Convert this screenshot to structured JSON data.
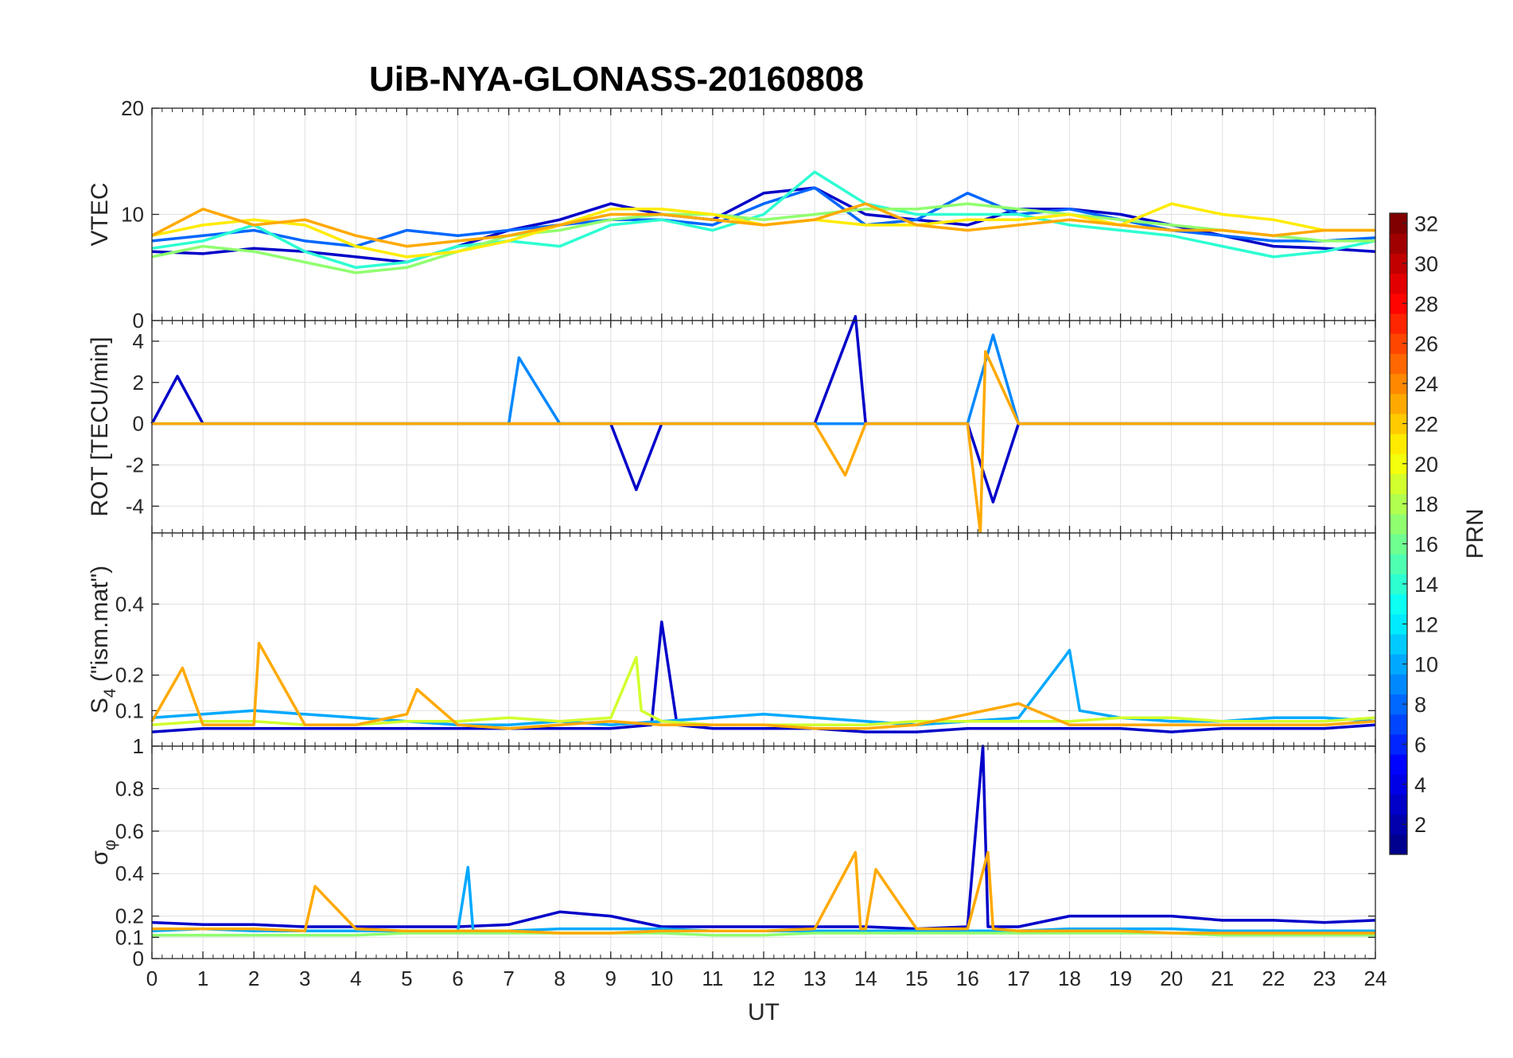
{
  "title": "UiB-NYA-GLONASS-20160808",
  "colormap": [
    "#00008f",
    "#0000ff",
    "#0080ff",
    "#00ffff",
    "#80ff80",
    "#ffff00",
    "#ff8000",
    "#ff0000",
    "#800000"
  ],
  "chart_data": [
    {
      "type": "line",
      "panel": "VTEC",
      "ylabel": "VTEC",
      "ylim": [
        0,
        20
      ],
      "yticks": [
        "0",
        "10",
        "20"
      ],
      "xlim": [
        0,
        24
      ],
      "grid": true,
      "series": [
        {
          "prn": 3,
          "x": [
            0,
            1,
            2,
            3,
            4,
            5,
            6,
            7,
            8,
            9,
            10,
            11,
            12,
            13,
            14,
            15,
            16,
            17,
            18,
            19,
            20,
            21,
            22,
            23,
            24
          ],
          "values": [
            6.5,
            6.3,
            6.8,
            6.5,
            6,
            5.5,
            7,
            8.5,
            9.5,
            11,
            10,
            9.5,
            12,
            12.5,
            10,
            9.5,
            9,
            10.5,
            10.5,
            10,
            9,
            8,
            7,
            6.8,
            6.5
          ]
        },
        {
          "prn": 8,
          "x": [
            0,
            1,
            2,
            3,
            4,
            5,
            6,
            7,
            8,
            9,
            10,
            11,
            12,
            13,
            14,
            15,
            16,
            17,
            18,
            19,
            20,
            21,
            22,
            23,
            24
          ],
          "values": [
            7.5,
            8,
            8.5,
            7.5,
            7,
            8.5,
            8,
            8.5,
            9,
            9.5,
            9.5,
            9,
            11,
            12.5,
            9,
            9.5,
            12,
            10,
            10.5,
            9.5,
            8.5,
            8,
            7.5,
            7.5,
            7.8
          ]
        },
        {
          "prn": 14,
          "x": [
            0,
            1,
            2,
            3,
            4,
            5,
            6,
            7,
            8,
            9,
            10,
            11,
            12,
            13,
            14,
            15,
            16,
            17,
            18,
            19,
            20,
            21,
            22,
            23,
            24
          ],
          "values": [
            6.8,
            7.5,
            9,
            6.5,
            5,
            5.5,
            7,
            7.5,
            7,
            9,
            9.5,
            8.5,
            10,
            14,
            11,
            10,
            10,
            10,
            9,
            8.5,
            8,
            7,
            6,
            6.5,
            7.5
          ]
        },
        {
          "prn": 17,
          "x": [
            0,
            1,
            2,
            3,
            4,
            5,
            6,
            7,
            8,
            9,
            10,
            11,
            12,
            13,
            14,
            15,
            16,
            17,
            18,
            19,
            20,
            21,
            22,
            23,
            24
          ],
          "values": [
            6,
            7,
            6.5,
            5.5,
            4.5,
            5,
            6.5,
            8,
            8.5,
            9.5,
            10,
            10,
            9.5,
            10,
            10.5,
            10.5,
            11,
            10.5,
            10,
            9.5,
            9,
            8.5,
            8,
            7.5,
            7.5
          ]
        },
        {
          "prn": 21,
          "x": [
            0,
            1,
            2,
            3,
            4,
            5,
            6,
            7,
            8,
            9,
            10,
            11,
            12,
            13,
            14,
            15,
            16,
            17,
            18,
            19,
            20,
            21,
            22,
            23,
            24
          ],
          "values": [
            8,
            9,
            9.5,
            9,
            7,
            6,
            6.5,
            7.5,
            9,
            10.5,
            10.5,
            10,
            9,
            9.5,
            9,
            9,
            9.5,
            9.5,
            10,
            9,
            11,
            10,
            9.5,
            8.5,
            8.5
          ]
        },
        {
          "prn": 23,
          "x": [
            0,
            1,
            2,
            3,
            4,
            5,
            6,
            7,
            8,
            9,
            10,
            11,
            12,
            13,
            14,
            15,
            16,
            17,
            18,
            19,
            20,
            21,
            22,
            23,
            24
          ],
          "values": [
            8,
            10.5,
            9,
            9.5,
            8,
            7,
            7.5,
            8,
            9,
            10,
            10,
            9.5,
            9,
            9.5,
            11,
            9,
            8.5,
            9,
            9.5,
            9,
            8.5,
            8.5,
            8,
            8.5,
            8.5
          ]
        }
      ]
    },
    {
      "type": "line",
      "panel": "ROT",
      "ylabel": "ROT [TECU/min]",
      "ylim": [
        -5.3,
        5
      ],
      "yticks": [
        "-4",
        "-2",
        "0",
        "2",
        "4"
      ],
      "xlim": [
        0,
        24
      ],
      "grid": true,
      "series": [
        {
          "prn": 3,
          "x": [
            0,
            0.5,
            1,
            2,
            3,
            4,
            5,
            6,
            7,
            8,
            9,
            9.5,
            10,
            11,
            12,
            13,
            13.8,
            14,
            15,
            16,
            16.5,
            17,
            18,
            19,
            20,
            21,
            22,
            23,
            24
          ],
          "values": [
            0,
            2.3,
            0,
            0,
            0,
            0,
            0,
            0,
            0,
            0,
            0,
            -3.2,
            0,
            0,
            0,
            0,
            5.2,
            0,
            0,
            0,
            -3.8,
            0,
            0,
            0,
            0,
            0,
            0,
            0,
            0
          ]
        },
        {
          "prn": 9,
          "x": [
            0,
            1,
            2,
            3,
            4,
            5,
            6,
            7,
            7.2,
            8,
            9,
            10,
            11,
            12,
            13,
            14,
            15,
            16,
            16.5,
            17,
            18,
            19,
            20,
            21,
            22,
            23,
            24
          ],
          "values": [
            0,
            0,
            0,
            0,
            0,
            0,
            0,
            0,
            3.2,
            0,
            0,
            0,
            0,
            0,
            0,
            0,
            0,
            0,
            4.3,
            0,
            0,
            0,
            0,
            0,
            0,
            0,
            0
          ]
        },
        {
          "prn": 23,
          "x": [
            0,
            1,
            2,
            3,
            4,
            5,
            6,
            7,
            8,
            9,
            10,
            11,
            12,
            13,
            13.6,
            14,
            15,
            16,
            16.25,
            16.35,
            17,
            18,
            19,
            20,
            21,
            22,
            23,
            24
          ],
          "values": [
            0,
            0,
            0,
            0,
            0,
            0,
            0,
            0,
            0,
            0,
            0,
            0,
            0,
            0,
            -2.5,
            0,
            0,
            0,
            -5.3,
            3.5,
            0,
            0,
            0,
            0,
            0,
            0,
            0,
            0
          ]
        }
      ]
    },
    {
      "type": "line",
      "panel": "S4",
      "ylabel": "S4 (\"ism.mat\")",
      "ylabel_main": "S",
      "ylabel_sub": "4",
      "ylabel_rest": " (\"ism.mat\")",
      "ylim": [
        0,
        0.6
      ],
      "yticks": [
        "0.1",
        "0.2",
        "0.4"
      ],
      "xlim": [
        0,
        24
      ],
      "grid": true,
      "series": [
        {
          "prn": 3,
          "x": [
            0,
            1,
            2,
            3,
            4,
            5,
            6,
            7,
            8,
            9,
            9.8,
            10,
            10.3,
            11,
            12,
            13,
            14,
            15,
            16,
            17,
            18,
            19,
            20,
            21,
            22,
            23,
            24
          ],
          "values": [
            0.04,
            0.05,
            0.05,
            0.05,
            0.05,
            0.05,
            0.05,
            0.05,
            0.05,
            0.05,
            0.06,
            0.35,
            0.06,
            0.05,
            0.05,
            0.05,
            0.04,
            0.04,
            0.05,
            0.05,
            0.05,
            0.05,
            0.04,
            0.05,
            0.05,
            0.05,
            0.06
          ]
        },
        {
          "prn": 10,
          "x": [
            0,
            1,
            2,
            3,
            4,
            5,
            6,
            7,
            8,
            9,
            10,
            11,
            12,
            13,
            14,
            15,
            16,
            17,
            17.9,
            18,
            18.2,
            19,
            20,
            21,
            22,
            23,
            24
          ],
          "values": [
            0.08,
            0.09,
            0.1,
            0.09,
            0.08,
            0.07,
            0.06,
            0.06,
            0.07,
            0.06,
            0.07,
            0.08,
            0.09,
            0.08,
            0.07,
            0.06,
            0.07,
            0.08,
            0.25,
            0.27,
            0.1,
            0.08,
            0.07,
            0.07,
            0.08,
            0.08,
            0.07
          ]
        },
        {
          "prn": 19,
          "x": [
            0,
            1,
            2,
            3,
            4,
            5,
            6,
            7,
            8,
            9,
            9.5,
            9.6,
            10,
            11,
            12,
            13,
            14,
            15,
            16,
            17,
            18,
            19,
            20,
            21,
            22,
            23,
            24
          ],
          "values": [
            0.06,
            0.07,
            0.07,
            0.06,
            0.06,
            0.07,
            0.07,
            0.08,
            0.07,
            0.08,
            0.25,
            0.1,
            0.07,
            0.06,
            0.06,
            0.06,
            0.06,
            0.07,
            0.07,
            0.07,
            0.07,
            0.08,
            0.08,
            0.07,
            0.07,
            0.07,
            0.08
          ]
        },
        {
          "prn": 23,
          "x": [
            0,
            0.6,
            1,
            2,
            2.1,
            3,
            4,
            5,
            5.2,
            6,
            7,
            8,
            9,
            10,
            11,
            12,
            13,
            14,
            15,
            16,
            17,
            18,
            19,
            20,
            21,
            22,
            23,
            24
          ],
          "values": [
            0.07,
            0.22,
            0.06,
            0.06,
            0.29,
            0.06,
            0.06,
            0.09,
            0.16,
            0.06,
            0.05,
            0.06,
            0.07,
            0.06,
            0.06,
            0.06,
            0.05,
            0.05,
            0.06,
            0.09,
            0.12,
            0.06,
            0.06,
            0.06,
            0.06,
            0.06,
            0.06,
            0.07
          ]
        }
      ]
    },
    {
      "type": "line",
      "panel": "sigma_phi",
      "ylabel": "σφ",
      "ylabel_main": "σ",
      "ylabel_sub": "φ",
      "ylim": [
        0,
        1
      ],
      "yticks": [
        "0",
        "0.1",
        "0.2",
        "0.4",
        "0.6",
        "0.8",
        "1"
      ],
      "xlim": [
        0,
        24
      ],
      "xlabel": "UT",
      "xticks": [
        "0",
        "1",
        "2",
        "3",
        "4",
        "5",
        "6",
        "7",
        "8",
        "9",
        "10",
        "11",
        "12",
        "13",
        "14",
        "15",
        "16",
        "17",
        "18",
        "19",
        "20",
        "21",
        "22",
        "23",
        "24"
      ],
      "grid": true,
      "series": [
        {
          "prn": 3,
          "x": [
            0,
            1,
            2,
            3,
            4,
            5,
            6,
            7,
            8,
            9,
            10,
            11,
            12,
            13,
            14,
            15,
            16,
            16.3,
            16.4,
            17,
            18,
            19,
            20,
            21,
            22,
            23,
            24
          ],
          "values": [
            0.17,
            0.16,
            0.16,
            0.15,
            0.15,
            0.15,
            0.15,
            0.16,
            0.22,
            0.2,
            0.15,
            0.15,
            0.15,
            0.15,
            0.15,
            0.14,
            0.15,
            1.0,
            0.15,
            0.15,
            0.2,
            0.2,
            0.2,
            0.18,
            0.18,
            0.17,
            0.18
          ]
        },
        {
          "prn": 10,
          "x": [
            0,
            1,
            2,
            3,
            4,
            5,
            6,
            6.2,
            6.3,
            7,
            8,
            9,
            10,
            11,
            12,
            13,
            14,
            15,
            16,
            17,
            18,
            19,
            20,
            21,
            22,
            23,
            24
          ],
          "values": [
            0.13,
            0.14,
            0.13,
            0.13,
            0.13,
            0.13,
            0.13,
            0.43,
            0.13,
            0.13,
            0.14,
            0.14,
            0.14,
            0.13,
            0.13,
            0.13,
            0.13,
            0.13,
            0.13,
            0.13,
            0.14,
            0.14,
            0.14,
            0.13,
            0.13,
            0.13,
            0.13
          ]
        },
        {
          "prn": 17,
          "x": [
            0,
            1,
            2,
            3,
            4,
            5,
            6,
            7,
            8,
            9,
            10,
            11,
            12,
            13,
            14,
            15,
            16,
            17,
            18,
            19,
            20,
            21,
            22,
            23,
            24
          ],
          "values": [
            0.11,
            0.11,
            0.11,
            0.11,
            0.11,
            0.12,
            0.12,
            0.12,
            0.12,
            0.12,
            0.12,
            0.11,
            0.11,
            0.12,
            0.12,
            0.12,
            0.12,
            0.12,
            0.12,
            0.12,
            0.12,
            0.11,
            0.11,
            0.11,
            0.11
          ]
        },
        {
          "prn": 23,
          "x": [
            0,
            1,
            2,
            3,
            3.2,
            4,
            5,
            6,
            7,
            8,
            9,
            10,
            11,
            12,
            13,
            13.8,
            13.9,
            14,
            14.2,
            15,
            16,
            16.4,
            16.5,
            17,
            18,
            19,
            20,
            21,
            22,
            23,
            24
          ],
          "values": [
            0.14,
            0.14,
            0.14,
            0.13,
            0.34,
            0.14,
            0.13,
            0.13,
            0.13,
            0.12,
            0.12,
            0.13,
            0.13,
            0.13,
            0.14,
            0.5,
            0.14,
            0.14,
            0.42,
            0.14,
            0.14,
            0.5,
            0.14,
            0.13,
            0.13,
            0.13,
            0.12,
            0.12,
            0.12,
            0.12,
            0.12
          ]
        }
      ]
    }
  ],
  "colorbar": {
    "label": "PRN",
    "range": [
      1,
      32
    ],
    "ticks": [
      "2",
      "4",
      "6",
      "8",
      "10",
      "12",
      "14",
      "16",
      "18",
      "20",
      "22",
      "24",
      "26",
      "28",
      "30",
      "32"
    ]
  }
}
